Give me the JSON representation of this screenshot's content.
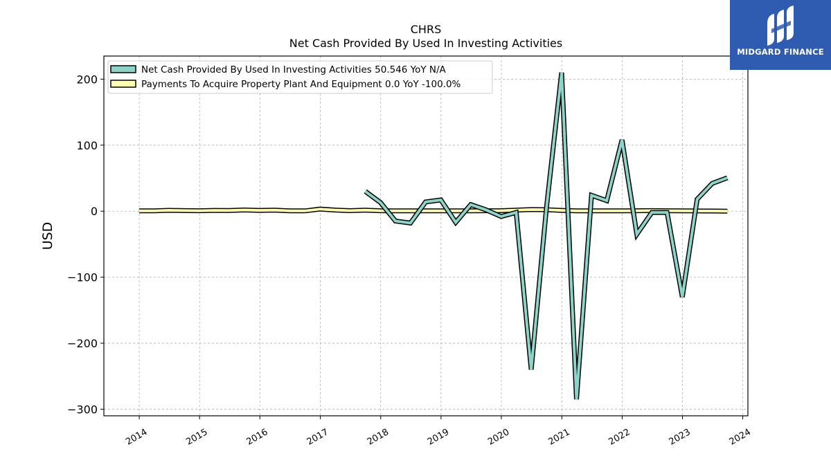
{
  "brand": {
    "name": "MIDGARD FINANCE",
    "logo_icon": "midgard-m-logo-icon",
    "background": "#2f5bb0"
  },
  "chart_data": {
    "type": "line",
    "title": "CHRS",
    "subtitle": "Net Cash Provided By Used In Investing Activities",
    "xlabel": "",
    "ylabel": "USD",
    "xlim": [
      "2013-06-01",
      "2024-02-01"
    ],
    "ylim": [
      -310,
      235
    ],
    "yticks": [
      -300,
      -200,
      -100,
      0,
      100,
      200
    ],
    "ytick_labels": [
      "−300",
      "−200",
      "−100",
      "0",
      "100",
      "200"
    ],
    "xticks": [
      "2014",
      "2015",
      "2016",
      "2017",
      "2018",
      "2019",
      "2020",
      "2021",
      "2022",
      "2023",
      "2024"
    ],
    "grid": true,
    "legend_position": "top-left",
    "series": [
      {
        "name": "Net Cash Provided By Used In Investing Activities  50.546 YoY N/A",
        "color": "#8dd3c7",
        "x": [
          "2017-09-30",
          "2017-12-31",
          "2018-03-31",
          "2018-06-30",
          "2018-09-30",
          "2018-12-31",
          "2019-03-31",
          "2019-06-30",
          "2019-09-30",
          "2019-12-31",
          "2020-03-31",
          "2020-06-30",
          "2020-09-30",
          "2020-12-31",
          "2021-03-31",
          "2021-06-30",
          "2021-09-30",
          "2021-12-31",
          "2022-03-31",
          "2022-06-30",
          "2022-09-30",
          "2022-12-31",
          "2023-03-31",
          "2023-06-30",
          "2023-09-30"
        ],
        "y": [
          30,
          13,
          -15,
          -18,
          14,
          17,
          -17,
          10,
          2,
          -8,
          -2,
          -240,
          5,
          210,
          -285,
          24,
          16,
          108,
          -35,
          -2,
          -2,
          -130,
          18,
          42,
          50.5
        ]
      },
      {
        "name": "Payments To Acquire Property Plant And Equipment  0.0 YoY -100.0%",
        "color": "#ffffb3",
        "x": [
          "2013-12-31",
          "2014-03-31",
          "2014-06-30",
          "2014-09-30",
          "2014-12-31",
          "2015-03-31",
          "2015-06-30",
          "2015-09-30",
          "2015-12-31",
          "2016-03-31",
          "2016-06-30",
          "2016-09-30",
          "2016-12-31",
          "2017-03-31",
          "2017-06-30",
          "2017-09-30",
          "2017-12-31",
          "2018-03-31",
          "2018-06-30",
          "2018-09-30",
          "2018-12-31",
          "2019-03-31",
          "2019-06-30",
          "2019-09-30",
          "2019-12-31",
          "2020-03-31",
          "2020-06-30",
          "2020-09-30",
          "2020-12-31",
          "2021-03-31",
          "2021-06-30",
          "2021-09-30",
          "2021-12-31",
          "2022-03-31",
          "2022-06-30",
          "2022-09-30",
          "2022-12-31",
          "2023-03-31",
          "2023-06-30",
          "2023-09-30"
        ],
        "y": [
          0.5,
          0.5,
          1.3,
          0.9,
          0.7,
          1.2,
          1.0,
          1.8,
          1.2,
          1.6,
          0.4,
          0.4,
          3.2,
          1.7,
          0.8,
          1.5,
          0.7,
          0.5,
          0.4,
          0.5,
          0.4,
          0.4,
          0.4,
          0.6,
          0.8,
          1.6,
          2.4,
          2.2,
          1.2,
          0.4,
          0.4,
          0.4,
          0.5,
          0.6,
          0.9,
          0.6,
          0.4,
          0.3,
          0.2,
          0.0
        ]
      }
    ]
  }
}
